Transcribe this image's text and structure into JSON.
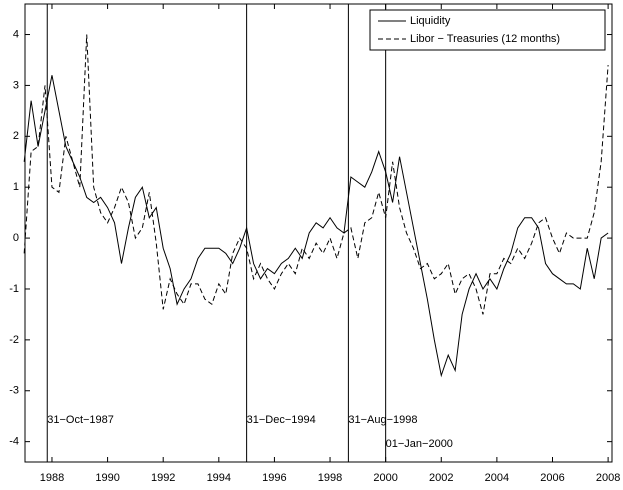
{
  "chart_data": {
    "type": "line",
    "x": [
      1987.0,
      1987.25,
      1987.5,
      1987.75,
      1988.0,
      1988.25,
      1988.5,
      1988.75,
      1989.0,
      1989.25,
      1989.5,
      1989.75,
      1990.0,
      1990.25,
      1990.5,
      1990.75,
      1991.0,
      1991.25,
      1991.5,
      1991.75,
      1992.0,
      1992.25,
      1992.5,
      1992.75,
      1993.0,
      1993.25,
      1993.5,
      1993.75,
      1994.0,
      1994.25,
      1994.5,
      1994.75,
      1995.0,
      1995.25,
      1995.5,
      1995.75,
      1996.0,
      1996.25,
      1996.5,
      1996.75,
      1997.0,
      1997.25,
      1997.5,
      1997.75,
      1998.0,
      1998.25,
      1998.5,
      1998.75,
      1999.0,
      1999.25,
      1999.5,
      1999.75,
      2000.0,
      2000.25,
      2000.5,
      2000.75,
      2001.0,
      2001.25,
      2001.5,
      2001.75,
      2002.0,
      2002.25,
      2002.5,
      2002.75,
      2003.0,
      2003.25,
      2003.5,
      2003.75,
      2004.0,
      2004.25,
      2004.5,
      2004.75,
      2005.0,
      2005.25,
      2005.5,
      2005.75,
      2006.0,
      2006.25,
      2006.5,
      2006.75,
      2007.0,
      2007.25,
      2007.5,
      2007.75,
      2008.0
    ],
    "series": [
      {
        "name": "Liquidity",
        "color": "#000000",
        "line_style": "solid",
        "values": [
          1.5,
          2.7,
          1.8,
          2.5,
          3.2,
          2.5,
          1.8,
          1.5,
          1.2,
          0.8,
          0.7,
          0.8,
          0.6,
          0.3,
          -0.5,
          0.2,
          0.8,
          1.0,
          0.4,
          0.6,
          -0.2,
          -0.6,
          -1.3,
          -1.0,
          -0.8,
          -0.4,
          -0.2,
          -0.2,
          -0.2,
          -0.3,
          -0.5,
          -0.2,
          0.2,
          -0.5,
          -0.8,
          -0.6,
          -0.7,
          -0.5,
          -0.4,
          -0.2,
          -0.4,
          0.1,
          0.3,
          0.2,
          0.4,
          0.2,
          0.1,
          1.2,
          1.1,
          1.0,
          1.3,
          1.7,
          1.3,
          0.7,
          1.6,
          0.9,
          0.2,
          -0.5,
          -1.2,
          -2.0,
          -2.7,
          -2.3,
          -2.6,
          -1.5,
          -1.0,
          -0.7,
          -1.0,
          -0.8,
          -1.0,
          -0.6,
          -0.3,
          0.2,
          0.4,
          0.4,
          0.2,
          -0.5,
          -0.7,
          -0.8,
          -0.9,
          -0.9,
          -1.0,
          -0.2,
          -0.8,
          0.0,
          0.1
        ]
      },
      {
        "name": "Libor − Treasuries (12 months)",
        "color": "#000000",
        "line_style": "dashed",
        "values": [
          -0.3,
          1.7,
          1.8,
          3.0,
          1.0,
          0.9,
          2.0,
          1.5,
          1.0,
          4.0,
          1.0,
          0.5,
          0.3,
          0.6,
          1.0,
          0.7,
          0.0,
          0.2,
          0.9,
          -0.1,
          -1.4,
          -0.8,
          -1.1,
          -1.3,
          -0.9,
          -0.9,
          -1.2,
          -1.3,
          -0.9,
          -1.1,
          -0.3,
          0.0,
          -0.2,
          -0.8,
          -0.5,
          -0.8,
          -1.0,
          -0.7,
          -0.5,
          -0.7,
          -0.2,
          -0.4,
          -0.1,
          -0.3,
          0.0,
          -0.4,
          0.1,
          0.2,
          -0.4,
          0.3,
          0.4,
          0.9,
          0.4,
          1.5,
          0.6,
          0.1,
          -0.2,
          -0.6,
          -0.5,
          -0.8,
          -0.7,
          -0.5,
          -1.1,
          -0.8,
          -0.7,
          -1.0,
          -1.5,
          -0.7,
          -0.7,
          -0.4,
          -0.5,
          -0.2,
          -0.4,
          -0.1,
          0.3,
          0.4,
          0.0,
          -0.3,
          0.1,
          0.0,
          0.0,
          0.0,
          0.5,
          1.5,
          3.4
        ]
      }
    ],
    "events": [
      {
        "x": 1987.83,
        "label": "31−Oct−1987"
      },
      {
        "x": 1995.0,
        "label": "31−Dec−1994"
      },
      {
        "x": 1998.66,
        "label": "31−Aug−1998"
      },
      {
        "x": 2000.0,
        "label": "01−Jan−2000"
      }
    ],
    "xlim": [
      1987.03,
      2008.14
    ],
    "xticks": [
      1988,
      1990,
      1992,
      1994,
      1996,
      1998,
      2000,
      2002,
      2004,
      2006,
      2008
    ],
    "ylim": [
      -4.4,
      4.6
    ],
    "yticks": [
      -4,
      -3,
      -2,
      -1,
      0,
      1,
      2,
      3,
      4
    ],
    "legend": "top-right",
    "grid": false
  }
}
